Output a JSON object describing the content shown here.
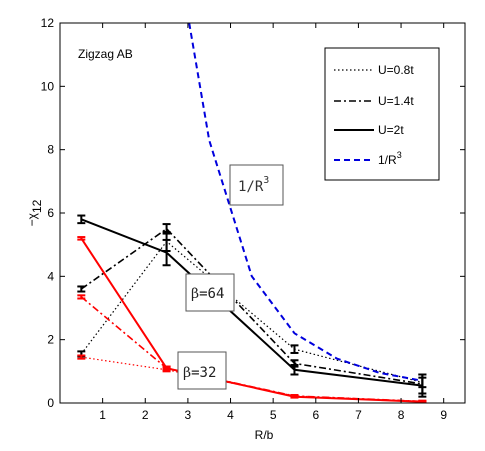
{
  "chart_data": {
    "type": "line",
    "title": "",
    "panel_label": "Zigzag AB",
    "xlabel": "R/b",
    "ylabel_main": "−χ",
    "ylabel_sub": "12",
    "xlim": [
      0,
      9.5
    ],
    "ylim": [
      0,
      12
    ],
    "xticks": [
      1,
      2,
      3,
      4,
      5,
      6,
      7,
      8,
      9
    ],
    "yticks": [
      0,
      2,
      4,
      6,
      8,
      10,
      12
    ],
    "grid": false,
    "legend_position": "top-right",
    "legend": [
      {
        "label": "U=0.8t",
        "style": "dotted"
      },
      {
        "label": "U=1.4t",
        "style": "dashdot"
      },
      {
        "label": "U=2t",
        "style": "solid"
      },
      {
        "label_main": "1/R",
        "label_sup": "3",
        "style": "dashed-blue"
      }
    ],
    "annotations": {
      "beta64": {
        "symbol": "β",
        "text": "=64"
      },
      "beta32": {
        "symbol": "β",
        "text": "=32"
      },
      "invr3": {
        "main": "1/R",
        "sup": "3"
      }
    },
    "series": [
      {
        "group": "beta64",
        "name": "U=0.8t",
        "style": "dotted",
        "color": "#000000",
        "x": [
          0.5,
          2.5,
          5.5,
          8.5
        ],
        "y": [
          1.55,
          5.1,
          1.7,
          0.65
        ],
        "err": [
          0.08,
          0.3,
          0.12,
          0.15
        ]
      },
      {
        "group": "beta64",
        "name": "U=1.4t",
        "style": "dashdot",
        "color": "#000000",
        "x": [
          0.5,
          2.5,
          5.5,
          8.5
        ],
        "y": [
          3.6,
          5.5,
          1.25,
          0.6
        ],
        "err": [
          0.08,
          0.15,
          0.1,
          0.3
        ]
      },
      {
        "group": "beta64",
        "name": "U=2t",
        "style": "solid",
        "color": "#000000",
        "x": [
          0.5,
          2.5,
          5.5,
          8.5
        ],
        "y": [
          5.8,
          4.75,
          1.05,
          0.55
        ],
        "err": [
          0.12,
          0.4,
          0.15,
          0.35
        ]
      },
      {
        "group": "beta32",
        "name": "U=0.8t",
        "style": "dotted",
        "color": "#ff0000",
        "x": [
          0.5,
          2.5,
          5.5,
          8.5
        ],
        "y": [
          1.45,
          1.05,
          0.22,
          0.05
        ],
        "err": [
          0.05,
          0.05,
          0.03,
          0.02
        ]
      },
      {
        "group": "beta32",
        "name": "U=1.4t",
        "style": "dashdot",
        "color": "#ff0000",
        "x": [
          0.5,
          2.5,
          5.5,
          8.5
        ],
        "y": [
          3.35,
          1.1,
          0.22,
          0.05
        ],
        "err": [
          0.05,
          0.05,
          0.03,
          0.02
        ]
      },
      {
        "group": "beta32",
        "name": "U=2t",
        "style": "solid",
        "color": "#ff0000",
        "x": [
          0.5,
          2.5,
          5.5,
          8.5
        ],
        "y": [
          5.2,
          1.1,
          0.2,
          0.04
        ],
        "err": [
          0.04,
          0.05,
          0.03,
          0.02
        ]
      },
      {
        "group": "reference",
        "name": "1/R^3",
        "style": "dashed",
        "color": "#0000dd",
        "x": [
          3.03,
          3.5,
          4.5,
          5.5,
          6.5,
          7.5,
          8.5
        ],
        "y": [
          12,
          8.3,
          4.0,
          2.2,
          1.4,
          0.95,
          0.7
        ]
      }
    ]
  }
}
